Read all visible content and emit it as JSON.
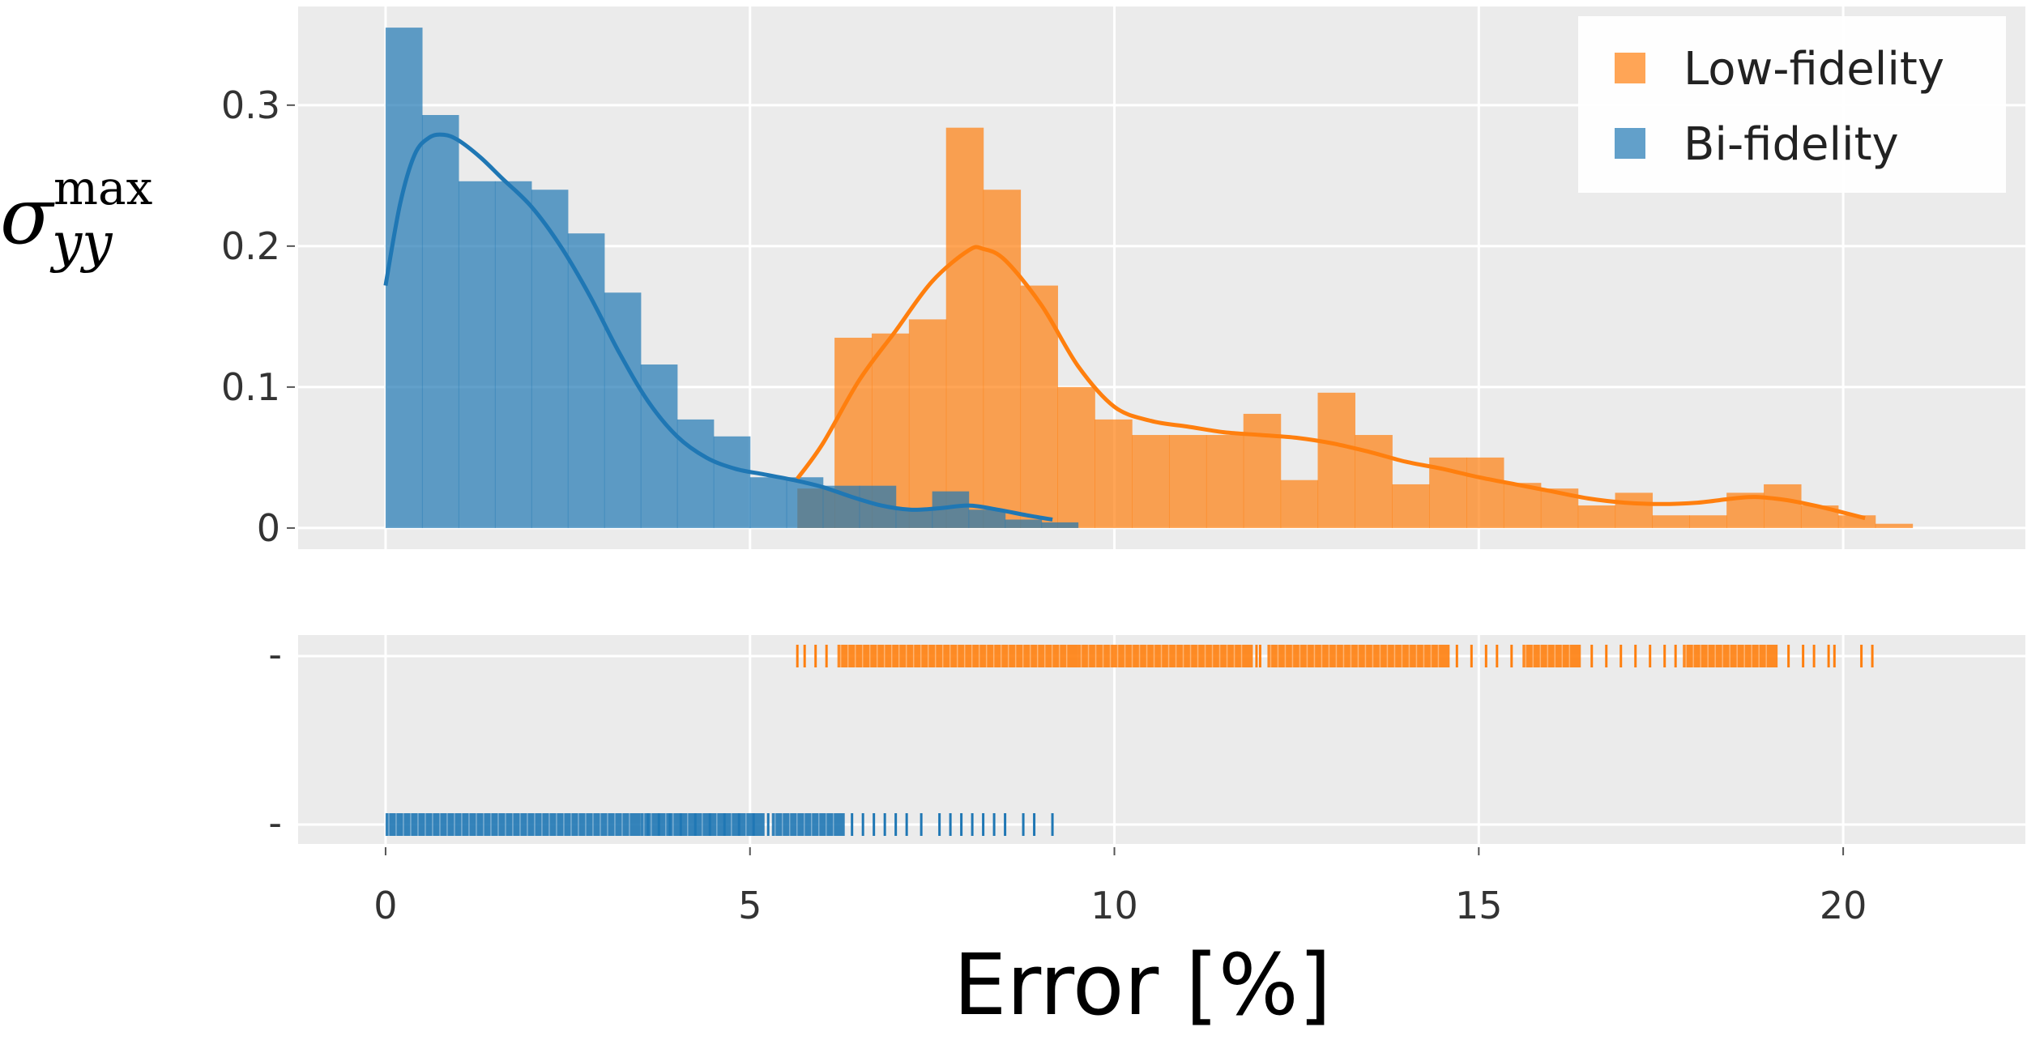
{
  "chart_data": [
    {
      "type": "histogram",
      "panel": "density",
      "ylabel": {
        "symbol": "σ",
        "superscript": "max",
        "subscript": "yy"
      },
      "yticks": [
        0,
        0.1,
        0.2,
        0.3
      ],
      "ytick_labels": [
        "0",
        "0.1",
        "0.2",
        "0.3"
      ],
      "xlim": [
        -1.2,
        22.5
      ],
      "ylim": [
        -0.015,
        0.37
      ],
      "grid": true,
      "legend_position": "top-right",
      "series": [
        {
          "name": "Low-fidelity",
          "color": "#ff7f0e",
          "bins": [
            {
              "x0": 5.65,
              "x1": 6.16,
              "y": 0.028
            },
            {
              "x0": 6.16,
              "x1": 6.67,
              "y": 0.135
            },
            {
              "x0": 6.67,
              "x1": 7.18,
              "y": 0.138
            },
            {
              "x0": 7.18,
              "x1": 7.69,
              "y": 0.148
            },
            {
              "x0": 7.69,
              "x1": 8.2,
              "y": 0.284
            },
            {
              "x0": 8.2,
              "x1": 8.71,
              "y": 0.24
            },
            {
              "x0": 8.71,
              "x1": 9.22,
              "y": 0.172
            },
            {
              "x0": 9.22,
              "x1": 9.73,
              "y": 0.1
            },
            {
              "x0": 9.73,
              "x1": 10.24,
              "y": 0.077
            },
            {
              "x0": 10.24,
              "x1": 10.75,
              "y": 0.066
            },
            {
              "x0": 10.75,
              "x1": 11.26,
              "y": 0.066
            },
            {
              "x0": 11.26,
              "x1": 11.77,
              "y": 0.066
            },
            {
              "x0": 11.77,
              "x1": 12.28,
              "y": 0.081
            },
            {
              "x0": 12.28,
              "x1": 12.79,
              "y": 0.034
            },
            {
              "x0": 12.79,
              "x1": 13.3,
              "y": 0.096
            },
            {
              "x0": 13.3,
              "x1": 13.81,
              "y": 0.066
            },
            {
              "x0": 13.81,
              "x1": 14.32,
              "y": 0.031
            },
            {
              "x0": 14.32,
              "x1": 14.83,
              "y": 0.05
            },
            {
              "x0": 14.83,
              "x1": 15.34,
              "y": 0.05
            },
            {
              "x0": 15.34,
              "x1": 15.85,
              "y": 0.032
            },
            {
              "x0": 15.85,
              "x1": 16.36,
              "y": 0.028
            },
            {
              "x0": 16.36,
              "x1": 16.87,
              "y": 0.016
            },
            {
              "x0": 16.87,
              "x1": 17.38,
              "y": 0.025
            },
            {
              "x0": 17.38,
              "x1": 17.89,
              "y": 0.009
            },
            {
              "x0": 17.89,
              "x1": 18.4,
              "y": 0.009
            },
            {
              "x0": 18.4,
              "x1": 18.91,
              "y": 0.025
            },
            {
              "x0": 18.91,
              "x1": 19.42,
              "y": 0.031
            },
            {
              "x0": 19.42,
              "x1": 19.93,
              "y": 0.016
            },
            {
              "x0": 19.93,
              "x1": 20.44,
              "y": 0.009
            },
            {
              "x0": 20.44,
              "x1": 20.95,
              "y": 0.003
            }
          ],
          "kde": {
            "x": [
              5.65,
              6.0,
              6.5,
              7.0,
              7.5,
              8.0,
              8.2,
              8.5,
              9.0,
              9.5,
              10.0,
              10.5,
              11.0,
              11.5,
              12.0,
              12.5,
              13.0,
              13.5,
              14.0,
              14.5,
              15.0,
              15.5,
              16.0,
              16.5,
              17.0,
              17.5,
              18.0,
              18.5,
              18.8,
              19.2,
              19.6,
              20.0,
              20.3
            ],
            "y": [
              0.035,
              0.06,
              0.105,
              0.14,
              0.175,
              0.197,
              0.198,
              0.19,
              0.158,
              0.115,
              0.086,
              0.076,
              0.072,
              0.068,
              0.066,
              0.064,
              0.06,
              0.054,
              0.047,
              0.042,
              0.036,
              0.031,
              0.026,
              0.021,
              0.018,
              0.017,
              0.018,
              0.021,
              0.022,
              0.02,
              0.016,
              0.011,
              0.007
            ]
          }
        },
        {
          "name": "Bi-fidelity",
          "color": "#1f77b4",
          "bins": [
            {
              "x0": 0.0,
              "x1": 0.5,
              "y": 0.355
            },
            {
              "x0": 0.5,
              "x1": 1.0,
              "y": 0.293
            },
            {
              "x0": 1.0,
              "x1": 1.5,
              "y": 0.246
            },
            {
              "x0": 1.5,
              "x1": 2.0,
              "y": 0.246
            },
            {
              "x0": 2.0,
              "x1": 2.5,
              "y": 0.24
            },
            {
              "x0": 2.5,
              "x1": 3.0,
              "y": 0.209
            },
            {
              "x0": 3.0,
              "x1": 3.5,
              "y": 0.167
            },
            {
              "x0": 3.5,
              "x1": 4.0,
              "y": 0.116
            },
            {
              "x0": 4.0,
              "x1": 4.5,
              "y": 0.077
            },
            {
              "x0": 4.5,
              "x1": 5.0,
              "y": 0.065
            },
            {
              "x0": 5.0,
              "x1": 5.5,
              "y": 0.036
            },
            {
              "x0": 5.5,
              "x1": 6.0,
              "y": 0.036
            },
            {
              "x0": 6.0,
              "x1": 6.5,
              "y": 0.03
            },
            {
              "x0": 6.5,
              "x1": 7.0,
              "y": 0.03
            },
            {
              "x0": 7.0,
              "x1": 7.5,
              "y": 0.013
            },
            {
              "x0": 7.5,
              "x1": 8.0,
              "y": 0.026
            },
            {
              "x0": 8.0,
              "x1": 8.5,
              "y": 0.013
            },
            {
              "x0": 8.5,
              "x1": 9.0,
              "y": 0.006
            },
            {
              "x0": 9.0,
              "x1": 9.5,
              "y": 0.004
            }
          ],
          "kde": {
            "x": [
              0.0,
              0.2,
              0.4,
              0.6,
              0.8,
              1.0,
              1.3,
              1.6,
              2.0,
              2.4,
              2.8,
              3.2,
              3.6,
              4.0,
              4.4,
              4.8,
              5.2,
              5.6,
              6.0,
              6.4,
              6.8,
              7.2,
              7.6,
              8.0,
              8.4,
              8.8,
              9.15
            ],
            "y": [
              0.172,
              0.23,
              0.265,
              0.277,
              0.279,
              0.275,
              0.263,
              0.248,
              0.228,
              0.2,
              0.165,
              0.125,
              0.09,
              0.065,
              0.05,
              0.042,
              0.038,
              0.034,
              0.029,
              0.022,
              0.016,
              0.013,
              0.014,
              0.016,
              0.013,
              0.009,
              0.006
            ]
          }
        }
      ]
    },
    {
      "type": "rug",
      "panel": "rug",
      "xlabel": "Error [%]",
      "xticks": [
        0,
        5,
        10,
        15,
        20
      ],
      "xtick_labels": [
        "0",
        "5",
        "10",
        "15",
        "20"
      ],
      "xlim": [
        -1.2,
        22.5
      ],
      "ytick_labels": [
        "-",
        "-"
      ],
      "grid": true,
      "series": [
        {
          "name": "Low-fidelity",
          "color": "#ff7f0e",
          "range": [
            5.65,
            20.4
          ],
          "dense_segments": [
            [
              6.2,
              9.5
            ],
            [
              9.5,
              11.9
            ],
            [
              12.1,
              14.6
            ],
            [
              15.6,
              16.4
            ],
            [
              17.8,
              19.1
            ]
          ],
          "sparse_ticks": [
            5.65,
            5.75,
            5.9,
            6.05,
            11.95,
            12.0,
            14.7,
            14.9,
            15.1,
            15.25,
            15.45,
            16.55,
            16.75,
            16.95,
            17.15,
            17.35,
            17.55,
            17.7,
            19.25,
            19.45,
            19.6,
            19.8,
            19.88,
            20.25,
            20.4
          ]
        },
        {
          "name": "Bi-fidelity",
          "color": "#1f77b4",
          "range": [
            0.0,
            9.15
          ],
          "dense_segments": [
            [
              0.0,
              3.5
            ],
            [
              3.5,
              5.2
            ],
            [
              5.3,
              6.3
            ]
          ],
          "sparse_ticks": [
            3.6,
            3.75,
            3.9,
            4.05,
            4.25,
            4.45,
            4.65,
            4.85,
            5.05,
            5.25,
            6.4,
            6.55,
            6.7,
            6.85,
            7.0,
            7.15,
            7.35,
            7.6,
            7.75,
            7.9,
            8.05,
            8.2,
            8.35,
            8.5,
            8.75,
            8.9,
            9.15
          ]
        }
      ]
    }
  ]
}
